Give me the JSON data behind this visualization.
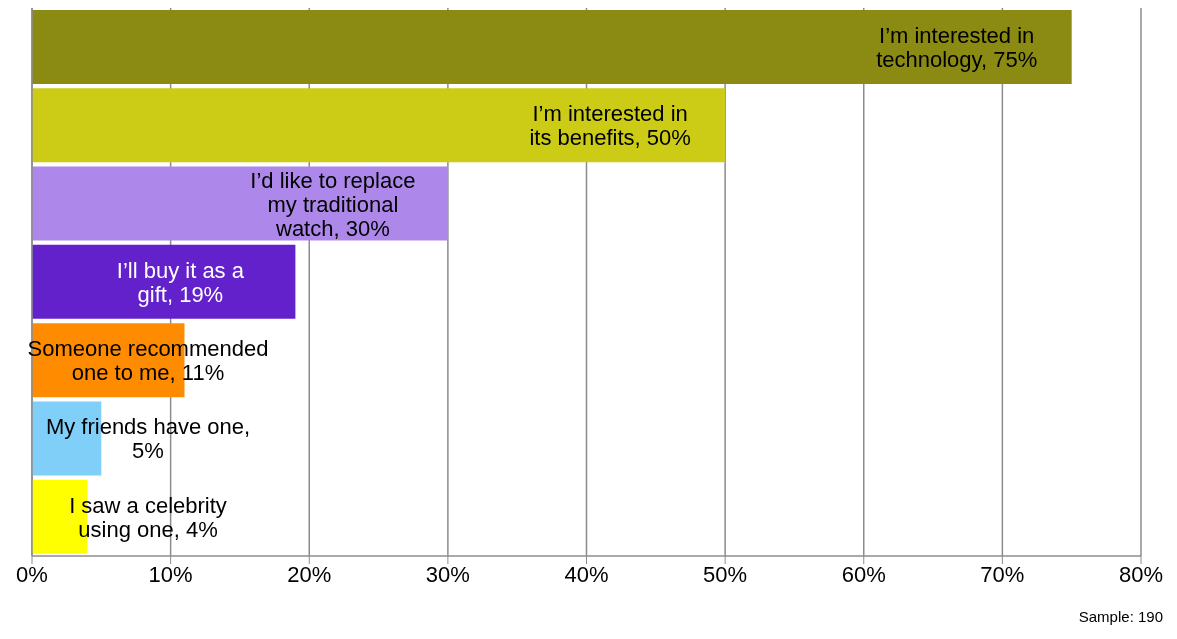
{
  "chart_data": {
    "type": "bar",
    "orientation": "horizontal",
    "categories": [
      null,
      null,
      null,
      null,
      null,
      null,
      null
    ],
    "values": [
      75,
      50,
      30,
      19,
      11,
      5,
      4
    ],
    "colors": [
      "#8b8b13",
      "#cccc17",
      "#ad88ea",
      "#6321cc",
      "#ff8c00",
      "#80cff8",
      "#ffff00"
    ],
    "value_labels": [
      "I’m interested in technology, 75%",
      "I’m interested in its benefits, 50%",
      "I’d like to replace my traditional watch, 30%",
      "I’ll buy it as a gift, 19%",
      "Someone recommended one to me, 11%",
      "My friends have one, 5%",
      "I saw a celebrity using one, 4%"
    ],
    "xlim": [
      0,
      80
    ],
    "xticks": [
      {
        "value": 0,
        "label": "0%"
      },
      {
        "value": 10,
        "label": "10%"
      },
      {
        "value": 20,
        "label": "20%"
      },
      {
        "value": 30,
        "label": "30%"
      },
      {
        "value": 40,
        "label": "40%"
      },
      {
        "value": 50,
        "label": "50%"
      },
      {
        "value": 60,
        "label": "60%"
      },
      {
        "value": 70,
        "label": "70%"
      },
      {
        "value": 80,
        "label": "80%"
      }
    ],
    "grid": "x",
    "tick_labels": "x",
    "legend": false,
    "annotations": [
      "Sample: 190"
    ]
  }
}
